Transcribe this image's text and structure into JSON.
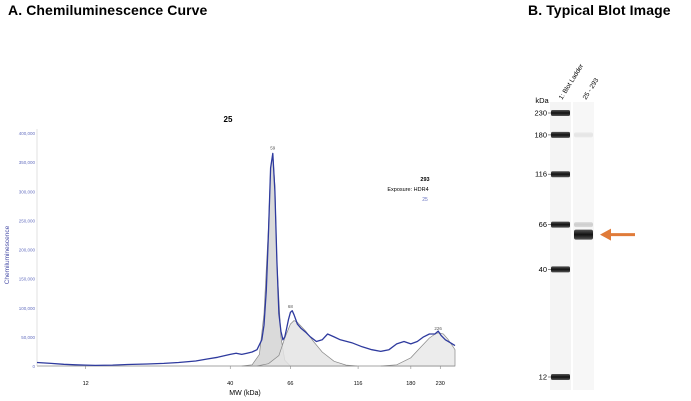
{
  "panel_a": {
    "title": "A. Chemiluminescence Curve"
  },
  "panel_b": {
    "title": "B.  Typical Blot Image"
  },
  "chart_data": [
    {
      "type": "line",
      "title": "25",
      "xlabel": "MW (kDa)",
      "ylabel": "Chemiluminescence",
      "x_ticks": [
        "12",
        "40",
        "66",
        "116",
        "180",
        "230"
      ],
      "x_tick_values": [
        12,
        40,
        66,
        116,
        180,
        230
      ],
      "x_scale": "log",
      "xlim": [
        8,
        260
      ],
      "y_ticks": [
        "0",
        "50,000",
        "100,000",
        "150,000",
        "200,000",
        "250,000",
        "300,000",
        "350,000",
        "400,000"
      ],
      "ylim": [
        0,
        400000
      ],
      "grid": false,
      "legend": {
        "lines": [
          "293",
          "Exposure: HDR4",
          "25"
        ]
      },
      "series": [
        {
          "color": "#2e3a9e",
          "x": [
            8,
            9,
            10,
            11,
            12,
            13,
            15,
            17,
            20,
            23,
            26,
            30,
            33,
            36,
            40,
            42,
            44,
            46,
            48,
            50,
            52,
            53,
            54,
            55,
            56,
            57,
            58,
            59,
            60,
            61,
            62,
            63,
            64,
            65,
            66,
            67,
            68,
            69,
            70,
            72,
            75,
            78,
            82,
            86,
            90,
            95,
            100,
            110,
            120,
            130,
            140,
            150,
            160,
            170,
            180,
            190,
            200,
            210,
            220,
            226,
            232,
            240,
            250,
            260
          ],
          "values": [
            6000,
            4500,
            3000,
            2000,
            1500,
            1000,
            1500,
            2500,
            3500,
            4500,
            6000,
            8500,
            12000,
            15000,
            20000,
            22000,
            20000,
            22000,
            24000,
            28000,
            45000,
            70000,
            130000,
            230000,
            340000,
            365000,
            300000,
            180000,
            90000,
            60000,
            45000,
            50000,
            65000,
            80000,
            92000,
            95000,
            88000,
            80000,
            72000,
            65000,
            58000,
            50000,
            42000,
            45000,
            55000,
            50000,
            45000,
            40000,
            33000,
            28000,
            25000,
            28000,
            38000,
            42000,
            38000,
            42000,
            50000,
            55000,
            55000,
            60000,
            52000,
            45000,
            40000,
            35000
          ]
        },
        {
          "name": "",
          "color": "#888888",
          "fill": "#d4d4d4",
          "x": [
            44,
            48,
            51,
            53,
            55,
            56,
            57,
            58,
            59,
            61,
            63,
            66
          ],
          "values": [
            0,
            2000,
            20000,
            90000,
            240000,
            340000,
            365000,
            310000,
            180000,
            50000,
            10000,
            0
          ]
        },
        {
          "color": "#888888",
          "fill": "#e4e4e4",
          "x": [
            50,
            55,
            60,
            63,
            66,
            68,
            70,
            75,
            80,
            86,
            95,
            105,
            115
          ],
          "values": [
            0,
            4000,
            18000,
            48000,
            72000,
            78000,
            75000,
            60000,
            42000,
            24000,
            8000,
            1500,
            0
          ]
        },
        {
          "color": "#888888",
          "fill": "#e9e9e9",
          "x": [
            140,
            160,
            180,
            195,
            210,
            222,
            228,
            236,
            245,
            255,
            260
          ],
          "values": [
            0,
            2000,
            14000,
            32000,
            48000,
            56000,
            57000,
            55000,
            46000,
            34000,
            28000
          ]
        }
      ],
      "annotations": [
        {
          "text": "59",
          "x": 57,
          "y": 372000
        },
        {
          "text": "68",
          "x": 66,
          "y": 100000
        },
        {
          "text": "226",
          "x": 226,
          "y": 62000
        }
      ]
    },
    {
      "type": "blot",
      "axis_unit": "kDa",
      "lanes": [
        "1: Blot Ladder",
        "25 - 293"
      ],
      "ladder_markers": [
        "230",
        "180",
        "116",
        "66",
        "40",
        "12"
      ],
      "ladder_marker_values": [
        230,
        180,
        116,
        66,
        40,
        12
      ],
      "sample_bands": [
        {
          "kda": 59,
          "intensity": 1.0
        },
        {
          "kda": 66,
          "intensity": 0.18
        },
        {
          "kda": 180,
          "intensity": 0.08
        }
      ],
      "arrow_target_kda": 59,
      "arrow_color": "#e07b39"
    }
  ]
}
